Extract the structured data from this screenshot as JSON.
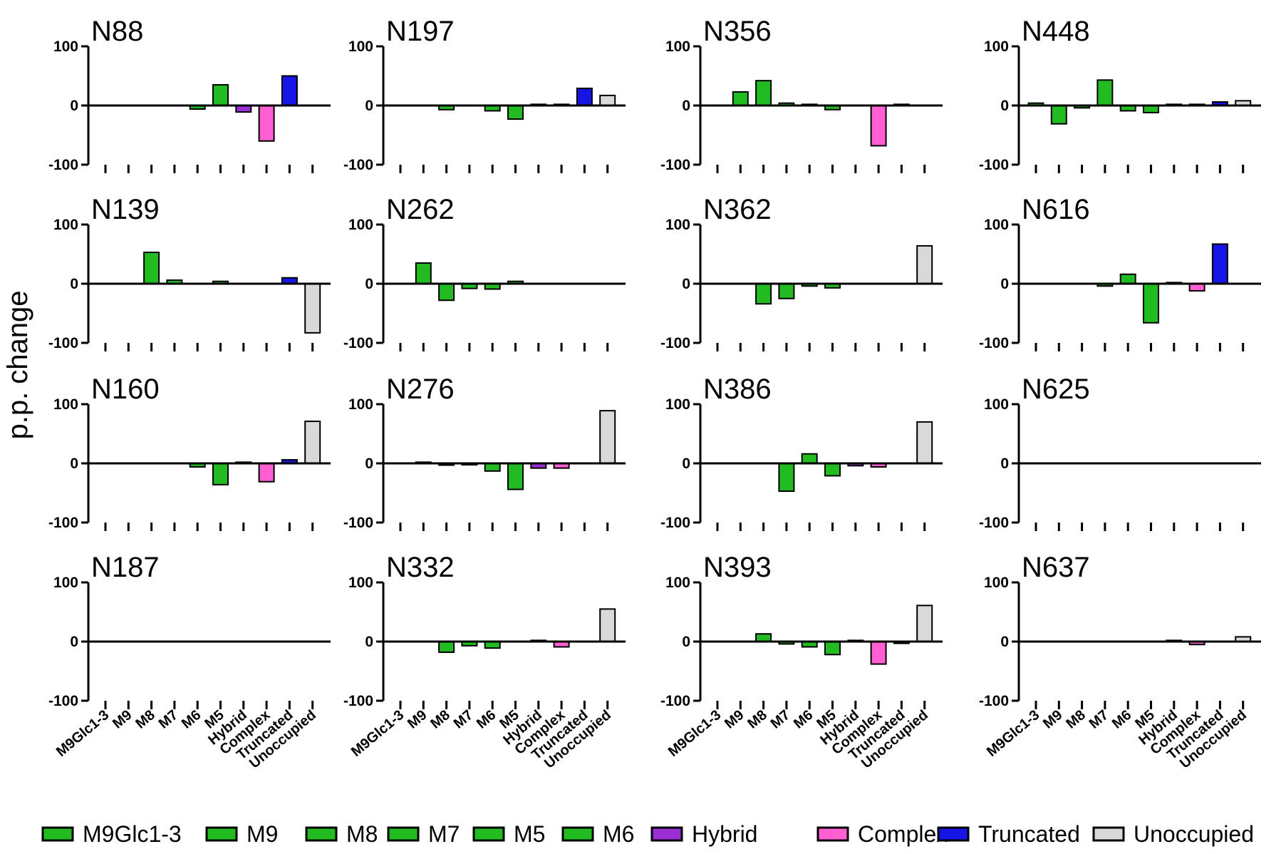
{
  "chart_data": {
    "type": "bar",
    "figure_ylabel": "p.p. change",
    "categories": [
      "M9Glc1-3",
      "M9",
      "M8",
      "M7",
      "M6",
      "M5",
      "Hybrid",
      "Complex",
      "Truncated",
      "Unoccupied"
    ],
    "category_colors": [
      "#22bb22",
      "#22bb22",
      "#22bb22",
      "#22bb22",
      "#22bb22",
      "#22bb22",
      "#9b2fd6",
      "#ff5fd2",
      "#1515e6",
      "#d9d9d9"
    ],
    "ylim": [
      -100,
      100
    ],
    "yticks": [
      "100",
      "0",
      "-100"
    ],
    "legend": {
      "placement": "bottom",
      "entries": [
        {
          "label": "M9Glc1-3",
          "color": "#22bb22"
        },
        {
          "label": "M9",
          "color": "#22bb22"
        },
        {
          "label": "M8",
          "color": "#22bb22"
        },
        {
          "label": "M7",
          "color": "#22bb22"
        },
        {
          "label": "M5",
          "color": "#22bb22"
        },
        {
          "label": "M6",
          "color": "#22bb22"
        },
        {
          "label": "Hybrid",
          "color": "#9b2fd6"
        },
        {
          "label": "Complex",
          "color": "#ff5fd2"
        },
        {
          "label": "Truncated",
          "color": "#1515e6"
        },
        {
          "label": "Unoccupied",
          "color": "#d9d9d9"
        }
      ]
    },
    "panels": [
      {
        "title": "N88",
        "values": [
          0,
          0,
          0,
          0,
          -6,
          35,
          -11,
          -60,
          50,
          0
        ]
      },
      {
        "title": "N197",
        "values": [
          0,
          0,
          -7,
          0,
          -9,
          -23,
          2,
          2,
          29,
          17
        ]
      },
      {
        "title": "N356",
        "values": [
          0,
          23,
          42,
          4,
          2,
          -7,
          0,
          -68,
          2,
          0
        ]
      },
      {
        "title": "N448",
        "values": [
          4,
          -31,
          -4,
          43,
          -9,
          -12,
          2,
          2,
          6,
          8
        ]
      },
      {
        "title": "N139",
        "values": [
          0,
          0,
          53,
          6,
          0,
          4,
          0,
          0,
          10,
          -83
        ]
      },
      {
        "title": "N262",
        "values": [
          0,
          35,
          -28,
          -8,
          -9,
          4,
          0,
          0,
          0,
          0
        ]
      },
      {
        "title": "N362",
        "values": [
          0,
          0,
          -34,
          -25,
          -4,
          -7,
          0,
          0,
          0,
          64
        ]
      },
      {
        "title": "N616",
        "values": [
          0,
          0,
          0,
          -4,
          16,
          -66,
          2,
          -12,
          67,
          0
        ]
      },
      {
        "title": "N160",
        "values": [
          0,
          0,
          0,
          0,
          -6,
          -36,
          2,
          -31,
          6,
          71
        ]
      },
      {
        "title": "N276",
        "values": [
          0,
          2,
          -3,
          -2,
          -13,
          -44,
          -8,
          -8,
          0,
          89
        ]
      },
      {
        "title": "N386",
        "values": [
          0,
          0,
          0,
          -47,
          16,
          -21,
          -4,
          -6,
          0,
          70
        ]
      },
      {
        "title": "N625",
        "values": [
          0,
          0,
          0,
          0,
          0,
          0,
          0,
          0,
          0,
          0
        ]
      },
      {
        "title": "N187",
        "values": [
          0,
          0,
          0,
          0,
          0,
          0,
          0,
          0,
          0,
          0
        ]
      },
      {
        "title": "N332",
        "values": [
          0,
          0,
          -18,
          -7,
          -11,
          0,
          2,
          -9,
          0,
          55
        ]
      },
      {
        "title": "N393",
        "values": [
          0,
          0,
          13,
          -4,
          -9,
          -22,
          2,
          -38,
          -3,
          61
        ]
      },
      {
        "title": "N637",
        "values": [
          0,
          0,
          0,
          0,
          0,
          0,
          2,
          -5,
          0,
          8
        ]
      }
    ]
  }
}
